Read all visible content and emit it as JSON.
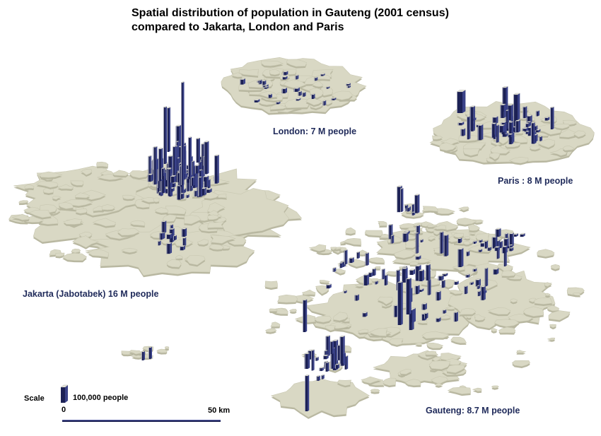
{
  "title": {
    "line1": "Spatial distribution of population in Gauteng (2001 census)",
    "line2": "compared to Jakarta, London and Paris"
  },
  "cities": {
    "london": {
      "label": "London: 7 M people",
      "population_millions": 7
    },
    "paris": {
      "label": "Paris : 8 M people",
      "population_millions": 8
    },
    "jakarta": {
      "label": "Jakarta (Jabotabek) 16 M people",
      "population_millions": 16
    },
    "gauteng": {
      "label": "Gauteng: 8.7 M people",
      "population_millions": 8.7
    }
  },
  "legend": {
    "scale_word": "Scale",
    "bar_unit": "100,000 people",
    "distance_start": "0",
    "distance_end": "50 km"
  },
  "colors": {
    "land": "#d9d8c4",
    "land_edge": "#b8b7a0",
    "bar_front": "#1c2155",
    "bar_side": "#3a4288",
    "bar_top": "#ecebdf",
    "label": "#1f2a5a",
    "background": "#ffffff"
  }
}
